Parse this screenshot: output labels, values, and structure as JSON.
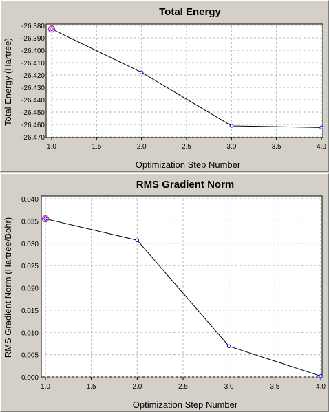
{
  "chart_data": [
    {
      "type": "line",
      "title": "Total Energy",
      "xlabel": "Optimization Step Number",
      "ylabel": "Total Energy (Hartree)",
      "xlim": [
        1.0,
        4.0
      ],
      "ylim": [
        -26.47,
        -26.38
      ],
      "xticks": [
        "1.0",
        "1.5",
        "2.0",
        "2.5",
        "3.0",
        "3.5",
        "4.0"
      ],
      "yticks": [
        "-26.380",
        "-26.390",
        "-26.400",
        "-26.410",
        "-26.420",
        "-26.430",
        "-26.440",
        "-26.450",
        "-26.460",
        "-26.470"
      ],
      "grid": true,
      "line_color": "#000000",
      "marker_color": "#0000ff",
      "highlight_color": "#cc3399",
      "x": [
        1,
        2,
        3,
        4
      ],
      "y": [
        -26.3829,
        -26.4179,
        -26.4611,
        -26.4624
      ],
      "highlight_point": 0
    },
    {
      "type": "line",
      "title": "RMS Gradient Norm",
      "xlabel": "Optimization Step Number",
      "ylabel": "RMS Gradient Norm (Hartree/Bohr)",
      "xlim": [
        1.0,
        4.0
      ],
      "ylim": [
        0.0,
        0.04
      ],
      "xticks": [
        "1.0",
        "1.5",
        "2.0",
        "2.5",
        "3.0",
        "3.5",
        "4.0"
      ],
      "yticks": [
        "0.040",
        "0.035",
        "0.030",
        "0.025",
        "0.020",
        "0.015",
        "0.010",
        "0.005",
        "0.000"
      ],
      "grid": true,
      "line_color": "#000000",
      "marker_color": "#0000ff",
      "highlight_color": "#cc3399",
      "x": [
        1,
        2,
        3,
        4
      ],
      "y": [
        0.0355,
        0.0307,
        0.0069,
        0.0002
      ],
      "highlight_point": 0
    }
  ]
}
